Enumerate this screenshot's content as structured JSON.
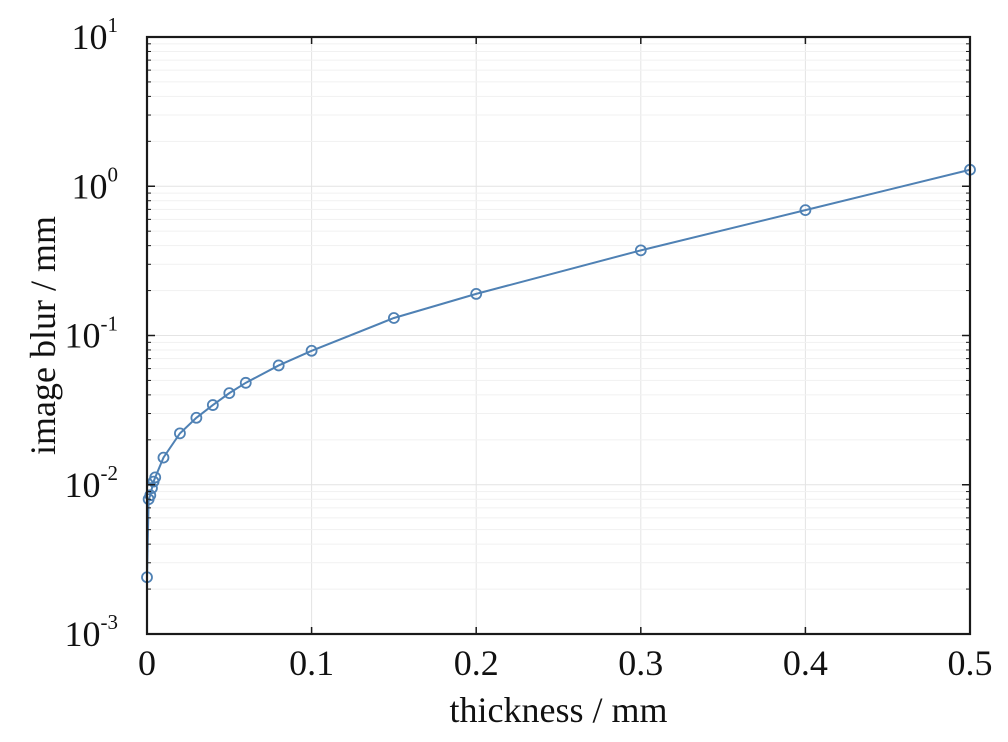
{
  "chart_data": {
    "type": "line",
    "xlabel": "thickness / mm",
    "ylabel": "image blur / mm",
    "xlim": [
      0,
      0.5
    ],
    "ylim": [
      0.001,
      10
    ],
    "yscale": "log",
    "grid": true,
    "x_ticks": [
      "0",
      "0.1",
      "0.2",
      "0.3",
      "0.4",
      "0.5"
    ],
    "y_ticks": [
      {
        "base": "10",
        "exp": "-3"
      },
      {
        "base": "10",
        "exp": "-2"
      },
      {
        "base": "10",
        "exp": "-1"
      },
      {
        "base": "10",
        "exp": "0"
      },
      {
        "base": "10",
        "exp": "1"
      }
    ],
    "series": [
      {
        "color": "#4f81b4",
        "marker": "circle",
        "x": [
          0.0,
          0.001,
          0.002,
          0.003,
          0.004,
          0.005,
          0.01,
          0.02,
          0.03,
          0.04,
          0.05,
          0.06,
          0.08,
          0.1,
          0.15,
          0.2,
          0.3,
          0.4,
          0.5
        ],
        "y": [
          0.0024,
          0.008,
          0.0085,
          0.0095,
          0.0105,
          0.0112,
          0.0152,
          0.0221,
          0.0281,
          0.0342,
          0.0411,
          0.0482,
          0.063,
          0.079,
          0.131,
          0.19,
          0.372,
          0.692,
          1.29
        ]
      }
    ]
  }
}
